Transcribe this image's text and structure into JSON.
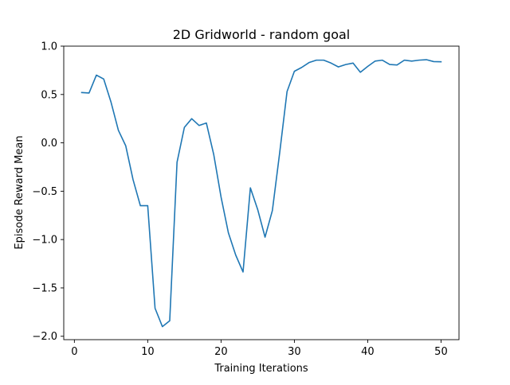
{
  "chart_data": {
    "type": "line",
    "title": "2D Gridworld - random goal",
    "xlabel": "Training Iterations",
    "ylabel": "Episode Reward Mean",
    "xlim": [
      -1.45,
      52.45
    ],
    "ylim": [
      -2.035,
      1.0
    ],
    "xticks": [
      0,
      10,
      20,
      30,
      40,
      50
    ],
    "xtick_labels": [
      "0",
      "10",
      "20",
      "30",
      "40",
      "50"
    ],
    "yticks": [
      1.0,
      0.5,
      0.0,
      -0.5,
      -1.0,
      -1.5,
      -2.0
    ],
    "ytick_labels": [
      "1.0",
      "0.5",
      "0.0",
      "−0.5",
      "−1.0",
      "−1.5",
      "−2.0"
    ],
    "grid": false,
    "legend": "none",
    "color": "#1f77b4",
    "series": [
      {
        "x": [
          1,
          2,
          3,
          4,
          5,
          6,
          7,
          8,
          9,
          10,
          11,
          12,
          13,
          14,
          15,
          16,
          17,
          18,
          19,
          20,
          21,
          22,
          23,
          24,
          25,
          26,
          27,
          28,
          29,
          30,
          31,
          32,
          33,
          34,
          35,
          36,
          37,
          38,
          39,
          40,
          41,
          42,
          43,
          44,
          45,
          46,
          47,
          48,
          49,
          50
        ],
        "values": [
          0.52,
          0.515,
          0.7,
          0.66,
          0.42,
          0.13,
          -0.03,
          -0.38,
          -0.65,
          -0.65,
          -1.71,
          -1.9,
          -1.84,
          -0.2,
          0.16,
          0.25,
          0.18,
          0.205,
          -0.12,
          -0.56,
          -0.93,
          -1.16,
          -1.335,
          -0.465,
          -0.69,
          -0.975,
          -0.7,
          -0.1,
          0.53,
          0.74,
          0.78,
          0.83,
          0.855,
          0.855,
          0.825,
          0.785,
          0.81,
          0.825,
          0.73,
          0.79,
          0.845,
          0.855,
          0.81,
          0.805,
          0.855,
          0.845,
          0.855,
          0.86,
          0.84,
          0.838
        ]
      }
    ]
  }
}
